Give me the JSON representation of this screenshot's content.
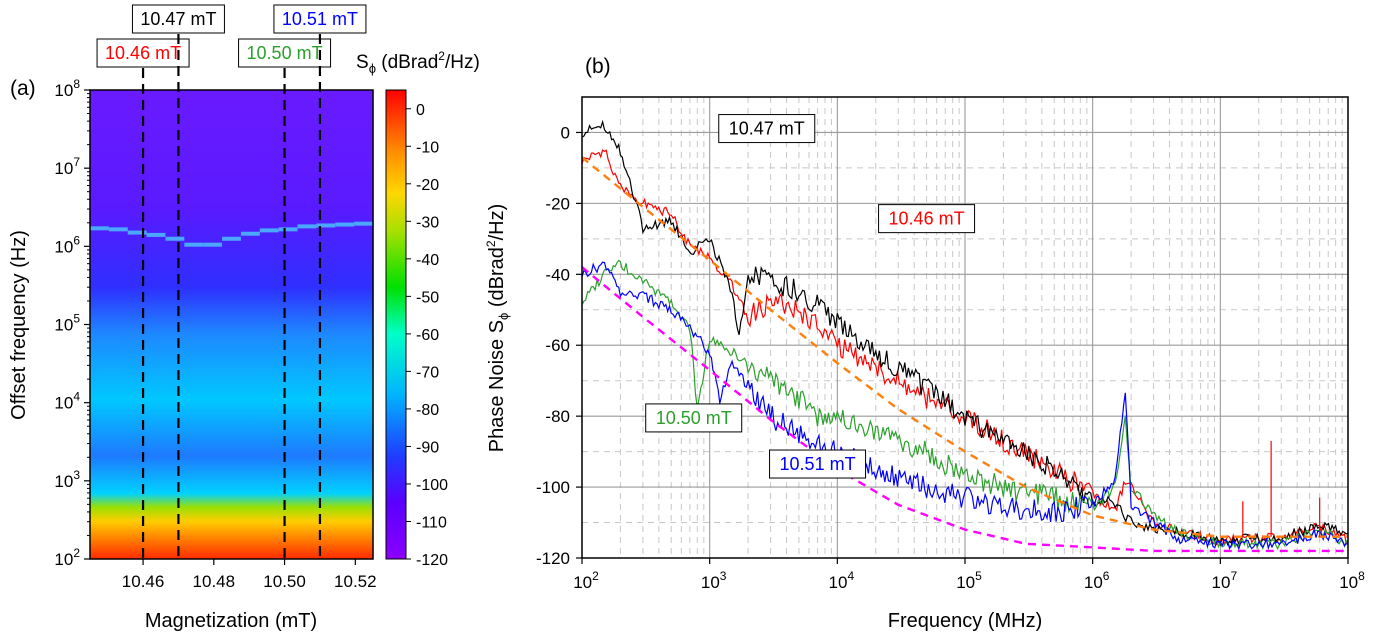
{
  "chart_data": [
    {
      "panel_label": "(a)",
      "type": "heatmap",
      "xlabel": "Magnetization (mT)",
      "ylabel": "Offset frequency (Hz)",
      "colorbar_label": "S",
      "colorbar_label_sub": "ϕ",
      "colorbar_label_unit_pre": " (dBrad",
      "colorbar_label_unit_sup": "2",
      "colorbar_label_unit_post": "/Hz)",
      "xlim": [
        10.445,
        10.525
      ],
      "ylim": [
        100,
        100000000
      ],
      "yscale": "log",
      "x_ticks": [
        "10.46",
        "10.48",
        "10.50",
        "10.52"
      ],
      "x_tick_values": [
        10.46,
        10.48,
        10.5,
        10.52
      ],
      "y_ticks": [
        {
          "base": "10",
          "exp": "2",
          "value": 100
        },
        {
          "base": "10",
          "exp": "3",
          "value": 1000
        },
        {
          "base": "10",
          "exp": "4",
          "value": 10000
        },
        {
          "base": "10",
          "exp": "5",
          "value": 100000
        },
        {
          "base": "10",
          "exp": "6",
          "value": 1000000
        },
        {
          "base": "10",
          "exp": "7",
          "value": 10000000
        },
        {
          "base": "10",
          "exp": "8",
          "value": 100000000
        }
      ],
      "colorbar_ticks": [
        "0",
        "-10",
        "-20",
        "-30",
        "-40",
        "-50",
        "-60",
        "-70",
        "-80",
        "-90",
        "-100",
        "-110",
        "-120"
      ],
      "colorbar_tick_values": [
        0,
        -10,
        -20,
        -30,
        -40,
        -50,
        -60,
        -70,
        -80,
        -90,
        -100,
        -110,
        -120
      ],
      "clim": [
        -120,
        5
      ],
      "columns": [
        {
          "field": 10.45,
          "peak_hz": 1700000
        },
        {
          "field": 10.455,
          "peak_hz": 1650000
        },
        {
          "field": 10.46,
          "peak_hz": 1500000
        },
        {
          "field": 10.465,
          "peak_hz": 1400000
        },
        {
          "field": 10.47,
          "peak_hz": 1250000
        },
        {
          "field": 10.475,
          "peak_hz": 1050000
        },
        {
          "field": 10.48,
          "peak_hz": 1050000
        },
        {
          "field": 10.485,
          "peak_hz": 1250000
        },
        {
          "field": 10.49,
          "peak_hz": 1450000
        },
        {
          "field": 10.495,
          "peak_hz": 1600000
        },
        {
          "field": 10.5,
          "peak_hz": 1650000
        },
        {
          "field": 10.505,
          "peak_hz": 1800000
        },
        {
          "field": 10.51,
          "peak_hz": 1850000
        },
        {
          "field": 10.515,
          "peak_hz": 1900000
        },
        {
          "field": 10.52,
          "peak_hz": 1950000
        }
      ],
      "markers": [
        {
          "field": 10.46,
          "label": "10.46 mT",
          "color": "#ff0000"
        },
        {
          "field": 10.47,
          "label": "10.47 mT",
          "color": "#000000"
        },
        {
          "field": 10.5,
          "label": "10.50 mT",
          "color": "#2ca02c"
        },
        {
          "field": 10.51,
          "label": "10.51 mT",
          "color": "#0000ff"
        }
      ]
    },
    {
      "panel_label": "(b)",
      "type": "line",
      "xlabel": "Frequency (MHz)",
      "ylabel": "Phase Noise S",
      "ylabel_sub": "ϕ",
      "ylabel_unit_pre": " (dBrad",
      "ylabel_unit_sup": "2",
      "ylabel_unit_post": "/Hz)",
      "xscale": "log",
      "xlim": [
        100,
        100000000
      ],
      "ylim": [
        -120,
        10
      ],
      "grid": true,
      "x_ticks": [
        {
          "base": "10",
          "exp": "2",
          "value": 100
        },
        {
          "base": "10",
          "exp": "3",
          "value": 1000
        },
        {
          "base": "10",
          "exp": "4",
          "value": 10000
        },
        {
          "base": "10",
          "exp": "5",
          "value": 100000
        },
        {
          "base": "10",
          "exp": "6",
          "value": 1000000
        },
        {
          "base": "10",
          "exp": "7",
          "value": 10000000
        },
        {
          "base": "10",
          "exp": "8",
          "value": 100000000
        }
      ],
      "y_ticks": [
        "0",
        "-20",
        "-40",
        "-60",
        "-80",
        "-100",
        "-120"
      ],
      "y_tick_values": [
        0,
        -20,
        -40,
        -60,
        -80,
        -100,
        -120
      ],
      "series": [
        {
          "name": "10.46 mT",
          "color": "#ff0000",
          "label_pos": [
            50000,
            -24.3
          ],
          "x": [
            100,
            150,
            200,
            300,
            500,
            700,
            1000,
            1500,
            2000,
            3000,
            5000,
            10000,
            20000,
            50000,
            100000,
            200000,
            500000,
            1000000,
            1500000,
            1800000,
            2000000,
            3000000,
            5000000,
            10000000,
            30000000,
            60000000,
            100000000
          ],
          "y": [
            -8,
            -5,
            -15,
            -20,
            -23,
            -32,
            -35,
            -43,
            -52,
            -48,
            -50,
            -60,
            -67,
            -75,
            -80,
            -87,
            -95,
            -102,
            -107,
            -98,
            -100,
            -110,
            -113,
            -115,
            -114,
            -111,
            -115
          ]
        },
        {
          "name": "10.47 mT",
          "color": "#000000",
          "label_pos": [
            2800,
            1.1
          ],
          "x": [
            100,
            150,
            200,
            300,
            500,
            700,
            1000,
            1500,
            1700,
            2000,
            3000,
            5000,
            10000,
            20000,
            50000,
            100000,
            200000,
            500000,
            1000000,
            1200000,
            1500000,
            2000000,
            3000000,
            5000000,
            10000000,
            30000000,
            60000000,
            100000000
          ],
          "y": [
            0,
            2,
            -5,
            -27,
            -25,
            -34,
            -30,
            -45,
            -58,
            -40,
            -42,
            -45,
            -53,
            -62,
            -72,
            -80,
            -87,
            -95,
            -105,
            -103,
            -105,
            -110,
            -112,
            -113,
            -115,
            -114,
            -111,
            -113
          ]
        },
        {
          "name": "10.50 mT",
          "color": "#2ca02c",
          "label_pos": [
            750,
            -80.5
          ],
          "x": [
            100,
            150,
            200,
            300,
            500,
            700,
            800,
            1000,
            1500,
            2000,
            3000,
            5000,
            8000,
            10000,
            20000,
            50000,
            100000,
            200000,
            500000,
            1000000,
            1500000,
            1800000,
            2000000,
            3000000,
            5000000,
            10000000,
            30000000,
            60000000,
            100000000
          ],
          "y": [
            -48,
            -40,
            -37,
            -42,
            -48,
            -55,
            -78,
            -58,
            -62,
            -65,
            -70,
            -75,
            -82,
            -80,
            -85,
            -90,
            -97,
            -100,
            -103,
            -106,
            -100,
            -80,
            -100,
            -108,
            -113,
            -116,
            -116,
            -112,
            -116
          ]
        },
        {
          "name": "10.51 mT",
          "color": "#0000ff",
          "label_pos": [
            7000,
            -93.5
          ],
          "x": [
            100,
            150,
            200,
            300,
            500,
            700,
            1000,
            1200,
            1500,
            2000,
            3000,
            5000,
            10000,
            20000,
            50000,
            100000,
            200000,
            500000,
            1000000,
            1500000,
            1800000,
            2000000,
            3000000,
            5000000,
            10000000,
            30000000,
            60000000,
            100000000
          ],
          "y": [
            -40,
            -37,
            -45,
            -46,
            -50,
            -55,
            -62,
            -75,
            -65,
            -72,
            -80,
            -85,
            -90,
            -95,
            -100,
            -103,
            -106,
            -107,
            -105,
            -98,
            -73,
            -105,
            -110,
            -115,
            -116,
            -116,
            -113,
            -116
          ]
        },
        {
          "name": "fit-orange",
          "color": "#ff7f0e",
          "dashed": true,
          "x": [
            100,
            300,
            1000,
            3000,
            10000,
            30000,
            100000,
            300000,
            1000000,
            3000000,
            10000000,
            30000000,
            100000000
          ],
          "y": [
            -7,
            -21,
            -36,
            -50,
            -65,
            -78,
            -90,
            -100,
            -108,
            -112,
            -114,
            -114,
            -114
          ]
        },
        {
          "name": "fit-magenta",
          "color": "#ff00ff",
          "dashed": true,
          "x": [
            100,
            300,
            1000,
            3000,
            10000,
            30000,
            100000,
            300000,
            1000000,
            3000000,
            10000000,
            100000000
          ],
          "y": [
            -38,
            -52,
            -67,
            -81,
            -95,
            -105,
            -112,
            -116,
            -117,
            -118,
            -118,
            -118
          ]
        }
      ]
    }
  ]
}
